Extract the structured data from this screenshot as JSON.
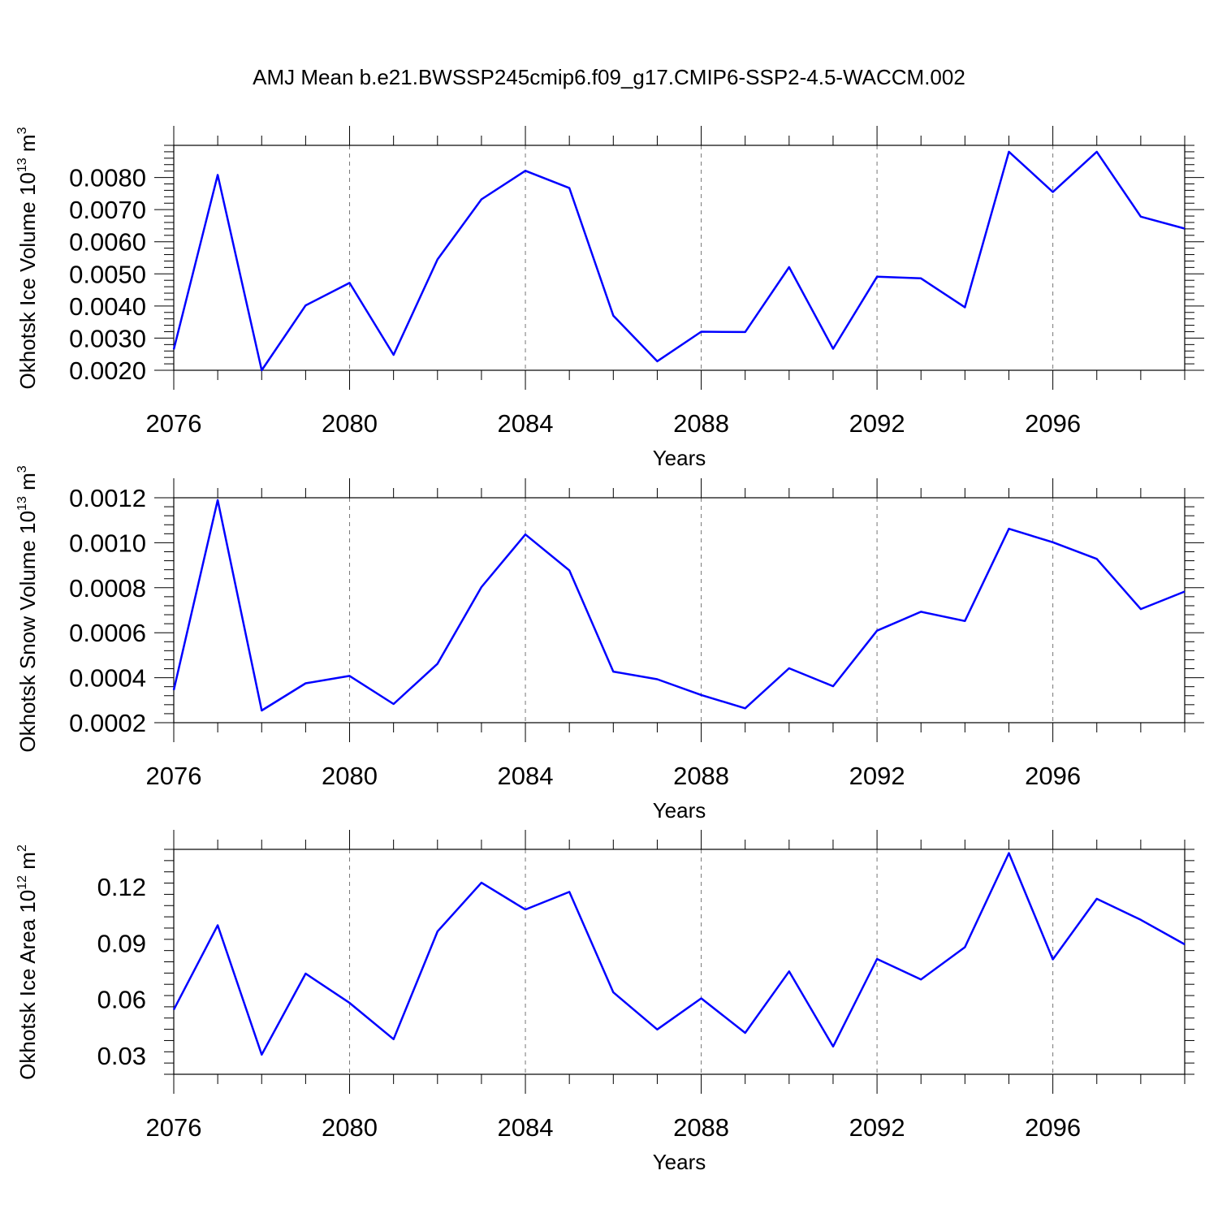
{
  "title": "AMJ Mean b.e21.BWSSP245cmip6.f09_g17.CMIP6-SSP2-4.5-WACCM.002",
  "colors": {
    "line": "#0000ff",
    "frame": "#000000",
    "grid": "#777777"
  },
  "chart_data": [
    {
      "type": "line",
      "panel": "ice-volume",
      "ylabel": {
        "main": "Okhotsk Ice Volume 10",
        "sup1": "13",
        "mid": " m",
        "sup2": "3"
      },
      "xlabel": "Years",
      "xlim": [
        2076,
        2099
      ],
      "ylim": [
        0.002,
        0.009
      ],
      "yticks": [
        0.002,
        0.003,
        0.004,
        0.005,
        0.006,
        0.007,
        0.008
      ],
      "yticklabels": [
        "0.0020",
        "0.0030",
        "0.0040",
        "0.0050",
        "0.0060",
        "0.0070",
        "0.0080"
      ],
      "xticks": [
        2076,
        2080,
        2084,
        2088,
        2092,
        2096
      ],
      "xticklabels": [
        "2076",
        "2080",
        "2084",
        "2088",
        "2092",
        "2096"
      ],
      "grid": "x-dashed",
      "x": [
        2076,
        2077,
        2078,
        2079,
        2080,
        2081,
        2082,
        2083,
        2084,
        2085,
        2086,
        2087,
        2088,
        2089,
        2090,
        2091,
        2092,
        2093,
        2094,
        2095,
        2096,
        2097,
        2098,
        2099
      ],
      "values": [
        0.00265,
        0.00808,
        0.002,
        0.00402,
        0.00472,
        0.00248,
        0.00545,
        0.00732,
        0.00821,
        0.00767,
        0.0037,
        0.00228,
        0.0032,
        0.00319,
        0.00521,
        0.00267,
        0.00491,
        0.00486,
        0.00396,
        0.0088,
        0.00755,
        0.0088,
        0.00678,
        0.00641
      ]
    },
    {
      "type": "line",
      "panel": "snow-volume",
      "ylabel": {
        "main": "Okhotsk Snow Volume 10",
        "sup1": "13",
        "mid": " m",
        "sup2": "3"
      },
      "xlabel": "Years",
      "xlim": [
        2076,
        2099
      ],
      "ylim": [
        0.0002,
        0.0012
      ],
      "yticks": [
        0.0002,
        0.0004,
        0.0006,
        0.0008,
        0.001,
        0.0012
      ],
      "yticklabels": [
        "0.0002",
        "0.0004",
        "0.0006",
        "0.0008",
        "0.0010",
        "0.0012"
      ],
      "xticks": [
        2076,
        2080,
        2084,
        2088,
        2092,
        2096
      ],
      "xticklabels": [
        "2076",
        "2080",
        "2084",
        "2088",
        "2092",
        "2096"
      ],
      "grid": "x-dashed",
      "x": [
        2076,
        2077,
        2078,
        2079,
        2080,
        2081,
        2082,
        2083,
        2084,
        2085,
        2086,
        2087,
        2088,
        2089,
        2090,
        2091,
        2092,
        2093,
        2094,
        2095,
        2096,
        2097,
        2098,
        2099
      ],
      "values": [
        0.000345,
        0.00119,
        0.000254,
        0.000375,
        0.000408,
        0.000283,
        0.000462,
        0.000803,
        0.001037,
        0.000877,
        0.000427,
        0.000393,
        0.000323,
        0.000264,
        0.000442,
        0.000362,
        0.000609,
        0.000693,
        0.000652,
        0.001062,
        0.001002,
        0.000928,
        0.000705,
        0.000783
      ]
    },
    {
      "type": "line",
      "panel": "ice-area",
      "ylabel": {
        "main": "Okhotsk Ice Area 10",
        "sup1": "12",
        "mid": " m",
        "sup2": "2"
      },
      "xlabel": "Years",
      "xlim": [
        2076,
        2099
      ],
      "ylim": [
        0.02,
        0.14
      ],
      "yticks": [
        0.03,
        0.06,
        0.09,
        0.12
      ],
      "yticklabels": [
        "0.03",
        "0.06",
        "0.09",
        "0.12"
      ],
      "xticks": [
        2076,
        2080,
        2084,
        2088,
        2092,
        2096
      ],
      "xticklabels": [
        "2076",
        "2080",
        "2084",
        "2088",
        "2092",
        "2096"
      ],
      "grid": "x-dashed",
      "x": [
        2076,
        2077,
        2078,
        2079,
        2080,
        2081,
        2082,
        2083,
        2084,
        2085,
        2086,
        2087,
        2088,
        2089,
        2090,
        2091,
        2092,
        2093,
        2094,
        2095,
        2096,
        2097,
        2098,
        2099
      ],
      "values": [
        0.0545,
        0.0995,
        0.0305,
        0.0737,
        0.0581,
        0.0387,
        0.0962,
        0.1222,
        0.1079,
        0.1173,
        0.0637,
        0.0439,
        0.0605,
        0.0421,
        0.0749,
        0.0348,
        0.0815,
        0.0706,
        0.0878,
        0.138,
        0.0813,
        0.1136,
        0.1024,
        0.0893
      ]
    }
  ]
}
